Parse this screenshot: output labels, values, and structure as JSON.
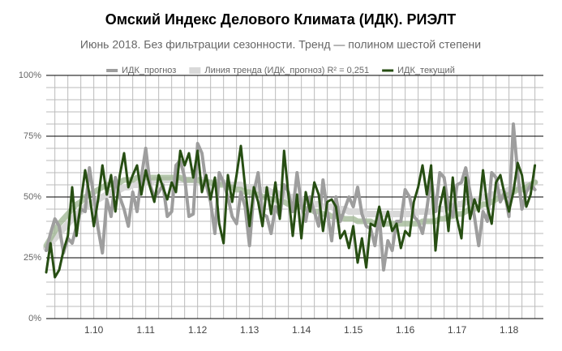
{
  "chart_data": {
    "type": "line",
    "title": "Омский Индекс Делового Климата (ИДК). РИЭЛТ",
    "subtitle": "Июнь 2018. Без фильтрации сезонности. Тренд — полином шестой степени",
    "categories": [
      null,
      null,
      null,
      null,
      null,
      null,
      null,
      null,
      null,
      null,
      null,
      "1.10",
      null,
      null,
      null,
      null,
      null,
      null,
      null,
      null,
      null,
      null,
      null,
      "1.11",
      null,
      null,
      null,
      null,
      null,
      null,
      null,
      null,
      null,
      null,
      null,
      "1.12",
      null,
      null,
      null,
      null,
      null,
      null,
      null,
      null,
      null,
      null,
      null,
      "1.13",
      null,
      null,
      null,
      null,
      null,
      null,
      null,
      null,
      null,
      null,
      null,
      "1.14",
      null,
      null,
      null,
      null,
      null,
      null,
      null,
      null,
      null,
      null,
      null,
      "1.15",
      null,
      null,
      null,
      null,
      null,
      null,
      null,
      null,
      null,
      null,
      null,
      "1.16",
      null,
      null,
      null,
      null,
      null,
      null,
      null,
      null,
      null,
      null,
      null,
      "1.17",
      null,
      null,
      null,
      null,
      null,
      null,
      null,
      null,
      null,
      null,
      null,
      "1.18",
      null,
      null,
      null,
      null,
      null,
      null
    ],
    "ylim": [
      0,
      100
    ],
    "yticks": [
      {
        "value": 0,
        "label": "0%"
      },
      {
        "value": 25,
        "label": "25%"
      },
      {
        "value": 50,
        "label": "50%"
      },
      {
        "value": 75,
        "label": "75%"
      },
      {
        "value": 100,
        "label": "100%"
      }
    ],
    "grid": true,
    "minor_grid": true,
    "legend": "top",
    "series": [
      {
        "name": "ИДК_прогноз",
        "color": "#9e9e9e",
        "line_width": 4,
        "values": [
          28,
          35,
          41,
          38,
          27,
          33,
          31,
          38,
          45,
          44,
          62,
          50,
          37,
          27,
          49,
          42,
          58,
          50,
          45,
          38,
          52,
          44,
          58,
          70,
          55,
          50,
          52,
          55,
          42,
          44,
          63,
          65,
          58,
          42,
          43,
          72,
          68,
          55,
          48,
          35,
          60,
          56,
          50,
          42,
          39,
          52,
          46,
          30,
          52,
          60,
          43,
          42,
          35,
          46,
          42,
          55,
          52,
          44,
          60,
          47,
          40,
          50,
          44,
          38,
          57,
          44,
          32,
          50,
          40,
          45,
          50,
          46,
          54,
          43,
          38,
          37,
          30,
          43,
          20,
          32,
          28,
          40,
          40,
          53,
          50,
          42,
          40,
          35,
          45,
          58,
          44,
          60,
          58,
          46,
          42,
          55,
          56,
          62,
          52,
          42,
          30,
          44,
          40,
          60,
          58,
          48,
          52,
          42,
          80,
          60,
          45,
          52,
          55,
          53
        ]
      },
      {
        "name": "Линия тренда (ИДК_прогноз) R² = 0,251",
        "color": "#d9d9d9",
        "line_width": 8,
        "values": [
          29,
          31,
          33,
          35,
          37,
          39,
          41,
          43,
          44,
          46,
          47,
          48,
          49,
          50,
          51,
          52,
          53,
          53,
          54,
          54,
          55,
          55,
          56,
          56,
          56,
          57,
          57,
          57,
          57,
          57,
          57,
          57,
          57,
          57,
          57,
          57,
          57,
          56,
          56,
          56,
          56,
          56,
          55,
          55,
          55,
          55,
          54,
          54,
          54,
          53,
          53,
          53,
          52,
          52,
          51,
          51,
          50,
          50,
          49,
          49,
          48,
          48,
          47,
          47,
          46,
          46,
          46,
          45,
          45,
          45,
          44,
          44,
          44,
          44,
          43,
          43,
          43,
          43,
          43,
          43,
          43,
          43,
          43,
          43,
          43,
          43,
          44,
          44,
          44,
          44,
          45,
          45,
          45,
          46,
          46,
          47,
          47,
          48,
          48,
          49,
          49,
          50,
          50,
          51,
          51,
          52,
          52,
          53,
          53,
          54,
          54,
          55,
          55,
          56
        ]
      },
      {
        "name": "ИДК_текущий",
        "color": "#274e13",
        "line_width": 3,
        "values": [
          19,
          31,
          17,
          20,
          28,
          34,
          54,
          34,
          48,
          61,
          51,
          38,
          49,
          63,
          51,
          59,
          44,
          59,
          68,
          54,
          59,
          63,
          51,
          61,
          54,
          48,
          59,
          54,
          49,
          56,
          52,
          69,
          63,
          68,
          58,
          69,
          52,
          59,
          49,
          58,
          39,
          31,
          59,
          48,
          59,
          71,
          54,
          38,
          54,
          48,
          38,
          54,
          43,
          56,
          41,
          69,
          51,
          34,
          51,
          33,
          52,
          44,
          56,
          51,
          36,
          48,
          49,
          46,
          33,
          36,
          29,
          38,
          23,
          33,
          21,
          39,
          38,
          46,
          38,
          44,
          36,
          39,
          29,
          36,
          34,
          48,
          54,
          63,
          51,
          63,
          28,
          46,
          54,
          36,
          58,
          41,
          33,
          58,
          41,
          49,
          44,
          61,
          46,
          39,
          56,
          59,
          51,
          44,
          52,
          64,
          59,
          46,
          51,
          63
        ]
      },
      {
        "color": "#9db592",
        "line_width": 7,
        "values": [
          30,
          33,
          36,
          39,
          41,
          43,
          45,
          47,
          48,
          50,
          51,
          52,
          53,
          54,
          55,
          55,
          56,
          56,
          57,
          57,
          57,
          58,
          58,
          58,
          58,
          58,
          58,
          58,
          58,
          58,
          58,
          58,
          57,
          57,
          57,
          57,
          56,
          56,
          56,
          55,
          55,
          55,
          54,
          54,
          53,
          53,
          52,
          52,
          51,
          51,
          50,
          50,
          49,
          49,
          48,
          48,
          47,
          47,
          46,
          46,
          45,
          45,
          44,
          44,
          43,
          43,
          42,
          42,
          42,
          41,
          41,
          41,
          40,
          40,
          40,
          40,
          39,
          39,
          39,
          39,
          39,
          39,
          39,
          39,
          39,
          39,
          39,
          40,
          40,
          40,
          40,
          41,
          41,
          42,
          42,
          43,
          43,
          44,
          45,
          45,
          46,
          47,
          47,
          48,
          49,
          50,
          50,
          51,
          52,
          53,
          53,
          54,
          55,
          56
        ]
      }
    ]
  }
}
